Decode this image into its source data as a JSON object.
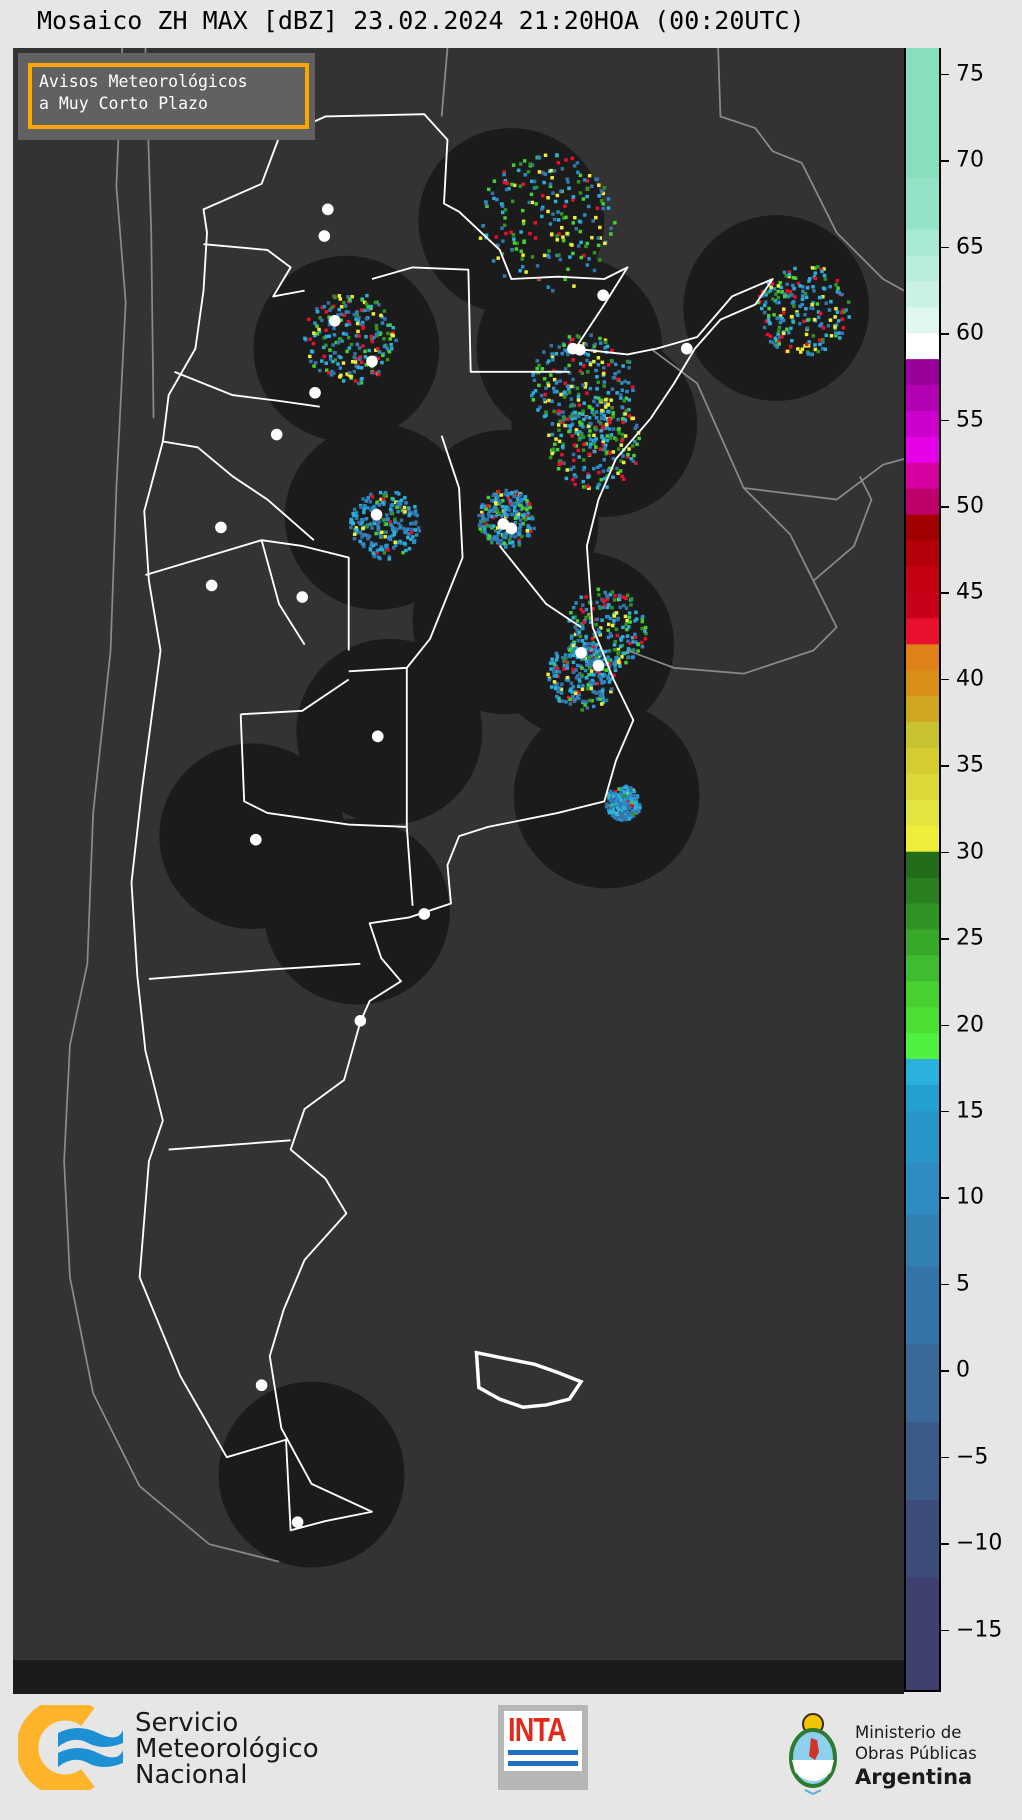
{
  "title": "Mosaico ZH MAX [dBZ] 23.02.2024 21:20HOA (00:20UTC)",
  "legend_box": {
    "line1": "Avisos Meteorológicos",
    "line2": "a Muy Corto Plazo",
    "border_color": "#ffa500"
  },
  "colorbar": {
    "unit": "dBZ",
    "range": [
      -18.5,
      76.5
    ],
    "ticks": [
      75,
      70,
      65,
      60,
      55,
      50,
      45,
      40,
      35,
      30,
      25,
      20,
      15,
      10,
      5,
      0,
      -5,
      -10,
      -15
    ],
    "tick_labels": [
      "75",
      "70",
      "65",
      "60",
      "55",
      "50",
      "45",
      "40",
      "35",
      "30",
      "25",
      "20",
      "15",
      "10",
      "5",
      "0",
      "−5",
      "−10",
      "−15"
    ],
    "bands": [
      {
        "from": 69,
        "to": 76.5,
        "color": "#88dfbd"
      },
      {
        "from": 66,
        "to": 69,
        "color": "#93e3c6"
      },
      {
        "from": 64.5,
        "to": 66,
        "color": "#a8ebd2"
      },
      {
        "from": 63,
        "to": 64.5,
        "color": "#b8eedc"
      },
      {
        "from": 61.5,
        "to": 63,
        "color": "#c9f2e4"
      },
      {
        "from": 60,
        "to": 61.5,
        "color": "#e0f7ee"
      },
      {
        "from": 58.5,
        "to": 60,
        "color": "#ffffff"
      },
      {
        "from": 57,
        "to": 58.5,
        "color": "#990099"
      },
      {
        "from": 55.5,
        "to": 57,
        "color": "#b300b3"
      },
      {
        "from": 54,
        "to": 55.5,
        "color": "#cc00cc"
      },
      {
        "from": 52.5,
        "to": 54,
        "color": "#e600e6"
      },
      {
        "from": 51,
        "to": 52.5,
        "color": "#d600a0"
      },
      {
        "from": 49.5,
        "to": 51,
        "color": "#c0006a"
      },
      {
        "from": 48,
        "to": 49.5,
        "color": "#a00000"
      },
      {
        "from": 46.5,
        "to": 48,
        "color": "#b40008"
      },
      {
        "from": 45,
        "to": 46.5,
        "color": "#c50010"
      },
      {
        "from": 43.5,
        "to": 45,
        "color": "#c9001a"
      },
      {
        "from": 42,
        "to": 43.5,
        "color": "#e8102c"
      },
      {
        "from": 40.5,
        "to": 42,
        "color": "#e08018"
      },
      {
        "from": 39,
        "to": 40.5,
        "color": "#d89018"
      },
      {
        "from": 37.5,
        "to": 39,
        "color": "#d0a820"
      },
      {
        "from": 36,
        "to": 37.5,
        "color": "#c6c230"
      },
      {
        "from": 34.5,
        "to": 36,
        "color": "#d4cc30"
      },
      {
        "from": 33,
        "to": 34.5,
        "color": "#dcd838"
      },
      {
        "from": 31.5,
        "to": 33,
        "color": "#e4e440"
      },
      {
        "from": 30,
        "to": 31.5,
        "color": "#eeee3a"
      },
      {
        "from": 28.5,
        "to": 30,
        "color": "#226c1a"
      },
      {
        "from": 27,
        "to": 28.5,
        "color": "#2a8020"
      },
      {
        "from": 25.5,
        "to": 27,
        "color": "#309424"
      },
      {
        "from": 24,
        "to": 25.5,
        "color": "#38a828"
      },
      {
        "from": 22.5,
        "to": 24,
        "color": "#40bc30"
      },
      {
        "from": 21,
        "to": 22.5,
        "color": "#48d030"
      },
      {
        "from": 19.5,
        "to": 21,
        "color": "#4ce034"
      },
      {
        "from": 18,
        "to": 19.5,
        "color": "#50f040"
      },
      {
        "from": 16.5,
        "to": 18,
        "color": "#2ab0dc"
      },
      {
        "from": 15,
        "to": 16.5,
        "color": "#24a0d0"
      },
      {
        "from": 12,
        "to": 15,
        "color": "#2896c8"
      },
      {
        "from": 9,
        "to": 12,
        "color": "#2e8cc0"
      },
      {
        "from": 6,
        "to": 9,
        "color": "#3080b4"
      },
      {
        "from": 1.5,
        "to": 6,
        "color": "#3474a8"
      },
      {
        "from": -3,
        "to": 1.5,
        "color": "#3a6898"
      },
      {
        "from": -7.5,
        "to": -3,
        "color": "#3c5a88"
      },
      {
        "from": -12,
        "to": -7.5,
        "color": "#3e4c7c"
      },
      {
        "from": -18.5,
        "to": -12,
        "color": "#404070"
      }
    ]
  },
  "map_colors": {
    "background": "#333333",
    "radar_coverage": "#1b1b1b",
    "borders": "#ffffff",
    "neighbors": "#8a8a8a"
  },
  "footer": {
    "smn": {
      "line1": "Servicio",
      "line2": "Meteorológico",
      "line3": "Nacional"
    },
    "inta": {
      "label": "INTA"
    },
    "ministerio": {
      "line1": "Ministerio de",
      "line2": "Obras Públicas",
      "line3": "Argentina"
    }
  }
}
